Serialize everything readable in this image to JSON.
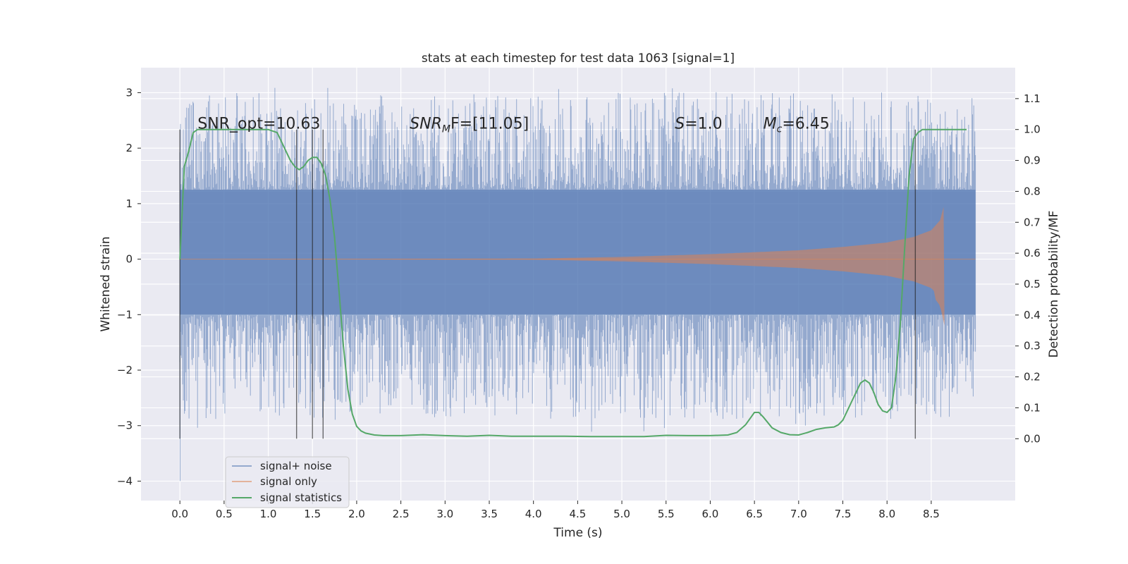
{
  "chart_data": {
    "type": "line",
    "title": "stats at each timestep for test data 1063 [signal=1]",
    "xlabel": "Time (s)",
    "ylabel": "Whitened strain",
    "y2label": "Detection probability/MF",
    "xlim": [
      -0.44,
      9.45
    ],
    "ylim": [
      -4.35,
      3.45
    ],
    "y2lim": [
      -0.2,
      1.2
    ],
    "x_ticks": [
      0.0,
      0.5,
      1.0,
      1.5,
      2.0,
      2.5,
      3.0,
      3.5,
      4.0,
      4.5,
      5.0,
      5.5,
      6.0,
      6.5,
      7.0,
      7.5,
      8.0,
      8.5
    ],
    "x_tick_labels": [
      "0.0",
      "0.5",
      "1.0",
      "1.5",
      "2.0",
      "2.5",
      "3.0",
      "3.5",
      "4.0",
      "4.5",
      "5.0",
      "5.5",
      "6.0",
      "6.5",
      "7.0",
      "7.5",
      "8.0",
      "8.5"
    ],
    "y_ticks": [
      -4,
      -3,
      -2,
      -1,
      0,
      1,
      2,
      3
    ],
    "y_tick_labels": [
      "−4",
      "−3",
      "−2",
      "−1",
      "0",
      "1",
      "2",
      "3"
    ],
    "y2_ticks": [
      0.0,
      0.1,
      0.2,
      0.3,
      0.4,
      0.5,
      0.6,
      0.7,
      0.8,
      0.9,
      1.0,
      1.1
    ],
    "y2_tick_labels": [
      "0.0",
      "0.1",
      "0.2",
      "0.3",
      "0.4",
      "0.5",
      "0.6",
      "0.7",
      "0.8",
      "0.9",
      "1.0",
      "1.1"
    ],
    "grid": true,
    "legend_position": "lower-left",
    "series": [
      {
        "name": "signal+ noise",
        "axis": "left",
        "color": "#4c72b0",
        "x_range": [
          0.0,
          9.0
        ],
        "envelope_core": [
          -1.0,
          1.25
        ],
        "peak_max": 3.1,
        "peak_min": -4.0
      },
      {
        "name": "signal only",
        "axis": "left",
        "color": "#dd8452",
        "x_range": [
          0.0,
          9.0
        ],
        "merger_time": 8.65,
        "amplitude_samples": [
          [
            0.0,
            0.0
          ],
          [
            4.0,
            0.01
          ],
          [
            5.0,
            0.04
          ],
          [
            6.0,
            0.09
          ],
          [
            7.0,
            0.16
          ],
          [
            7.5,
            0.22
          ],
          [
            8.0,
            0.3
          ],
          [
            8.3,
            0.4
          ],
          [
            8.5,
            0.52
          ],
          [
            8.6,
            0.7
          ],
          [
            8.65,
            1.0
          ]
        ]
      },
      {
        "name": "signal statistics",
        "axis": "right",
        "color": "#55a868",
        "x": [
          0.0,
          0.05,
          0.1,
          0.15,
          0.2,
          0.3,
          0.4,
          0.5,
          0.6,
          0.8,
          0.9,
          1.0,
          1.1,
          1.15,
          1.2,
          1.25,
          1.3,
          1.35,
          1.4,
          1.45,
          1.5,
          1.55,
          1.6,
          1.65,
          1.7,
          1.75,
          1.8,
          1.85,
          1.9,
          1.95,
          2.0,
          2.05,
          2.1,
          2.2,
          2.3,
          2.5,
          2.75,
          3.0,
          3.25,
          3.5,
          3.75,
          4.0,
          4.35,
          4.65,
          5.0,
          5.25,
          5.5,
          5.75,
          6.0,
          6.2,
          6.3,
          6.4,
          6.5,
          6.55,
          6.6,
          6.7,
          6.8,
          6.9,
          7.0,
          7.1,
          7.2,
          7.3,
          7.4,
          7.45,
          7.5,
          7.55,
          7.6,
          7.65,
          7.7,
          7.75,
          7.8,
          7.85,
          7.9,
          7.95,
          8.0,
          8.05,
          8.1,
          8.15,
          8.2,
          8.25,
          8.3,
          8.35,
          8.4,
          8.45,
          8.5,
          8.6,
          8.75,
          8.9
        ],
        "y": [
          0.58,
          0.88,
          0.93,
          0.99,
          1.0,
          1.0,
          1.0,
          1.0,
          1.0,
          1.0,
          1.0,
          1.0,
          0.99,
          0.96,
          0.93,
          0.9,
          0.88,
          0.87,
          0.88,
          0.9,
          0.91,
          0.91,
          0.89,
          0.85,
          0.77,
          0.65,
          0.48,
          0.3,
          0.16,
          0.08,
          0.04,
          0.025,
          0.018,
          0.012,
          0.01,
          0.01,
          0.013,
          0.01,
          0.008,
          0.011,
          0.008,
          0.008,
          0.008,
          0.007,
          0.007,
          0.007,
          0.011,
          0.01,
          0.01,
          0.012,
          0.02,
          0.045,
          0.085,
          0.085,
          0.07,
          0.035,
          0.02,
          0.013,
          0.012,
          0.02,
          0.03,
          0.035,
          0.038,
          0.045,
          0.06,
          0.09,
          0.12,
          0.15,
          0.18,
          0.19,
          0.18,
          0.15,
          0.11,
          0.09,
          0.085,
          0.1,
          0.2,
          0.37,
          0.62,
          0.85,
          0.97,
          0.99,
          1.0,
          1.0,
          1.0,
          1.0,
          1.0,
          1.0
        ]
      }
    ],
    "vertical_lines": [
      0.0,
      1.32,
      1.5,
      1.62,
      8.32
    ],
    "annotations": [
      {
        "x": 0.2,
        "y": 1.0,
        "axis": "right",
        "text_before": "SNR_opt=10.63",
        "sub": "",
        "text_after": ""
      },
      {
        "x": 2.6,
        "y": 1.0,
        "axis": "right",
        "text_before": "SNR",
        "sub": "M",
        "text_after": "F=[11.05]",
        "italic_before": true
      },
      {
        "x": 5.6,
        "y": 1.0,
        "axis": "right",
        "text_before": "S",
        "sub": "",
        "text_after": "=1.0",
        "italic_before": true
      },
      {
        "x": 6.6,
        "y": 1.0,
        "axis": "right",
        "text_before": "M",
        "sub": "c",
        "text_after": "=6.45",
        "italic_before": true
      }
    ]
  }
}
